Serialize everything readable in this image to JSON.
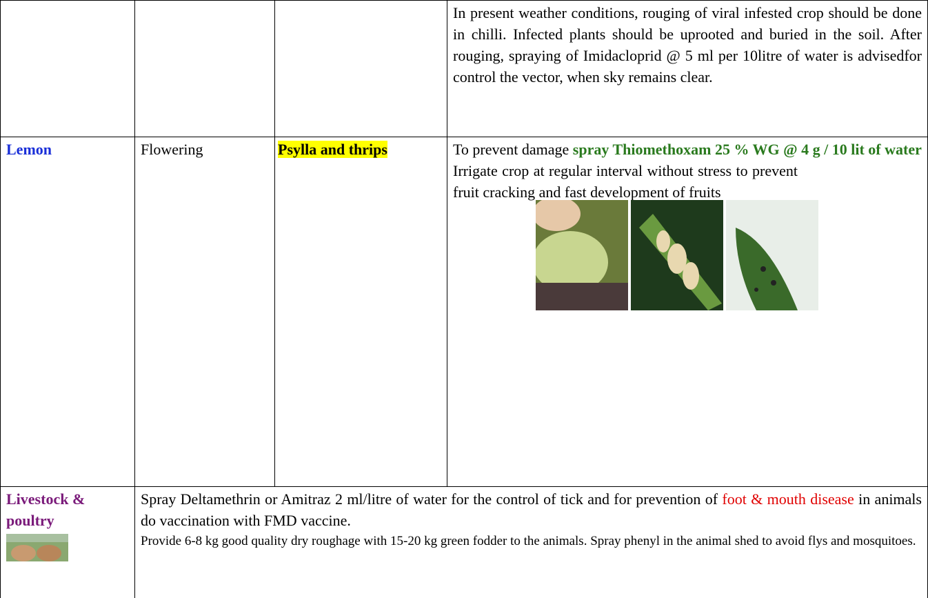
{
  "table": {
    "rows": [
      {
        "advisory": "In present weather conditions, rouging of viral infested crop should be done in chilli. Infected plants should be uprooted and buried in the soil. After rouging, spraying of Imidacloprid @ 5 ml per  10litre of water is advisedfor control the vector, when sky remains clear."
      },
      {
        "crop": "Lemon",
        "stage": "Flowering",
        "pest": "Psylla and thrips",
        "advisory": {
          "intro": "To prevent damage ",
          "chemical": "spray Thiomethoxam 25 % WG @ 4 g / 10 lit of water",
          "irrigation": "Irrigate crop at regular interval without stress to prevent fruit cracking and fast development of fruits"
        }
      },
      {
        "crop": "Livestock & poultry",
        "advisory": {
          "part1": "Spray Deltamethrin or Amitraz 2 ml/litre of water for the control of tick and for prevention of ",
          "disease": "foot & mouth disease",
          "part2": " in animals do vaccination with  FMD vaccine.",
          "feeding": "Provide 6-8 kg good quality dry roughage with 15-20 kg green fodder to the animals. Spray phenyl in the animal shed to avoid flys and mosquitoes."
        }
      }
    ]
  }
}
